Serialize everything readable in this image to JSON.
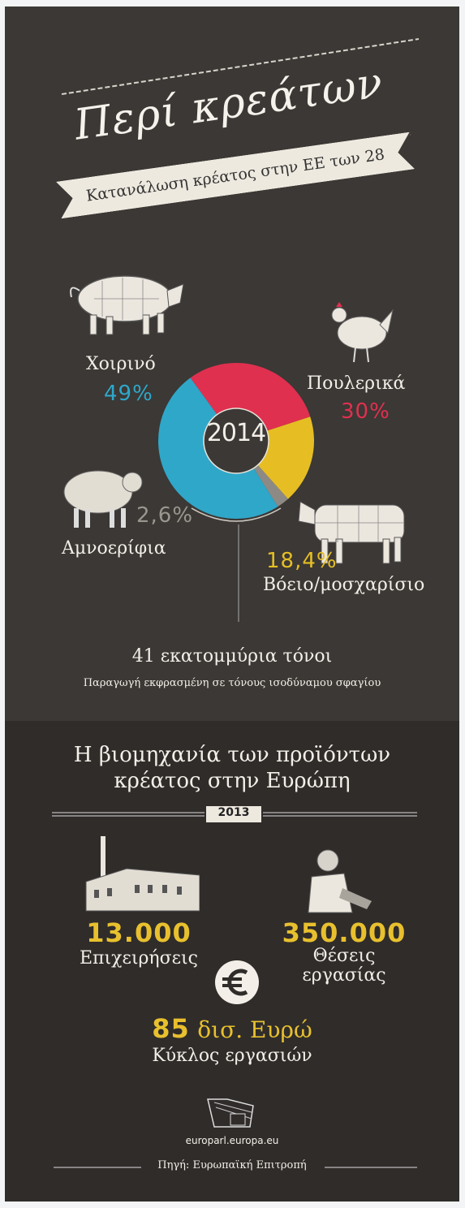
{
  "header": {
    "title": "Περί κρεάτων",
    "ribbon": "Κατανάλωση κρέατος στην ΕΕ των 28"
  },
  "chart_data": {
    "type": "pie",
    "center_label": "2014",
    "slices": [
      {
        "name": "Χοιρινό",
        "label": "49%",
        "value": 49,
        "color": "#2fa7c9"
      },
      {
        "name": "Πουλερικά",
        "label": "30%",
        "value": 30,
        "color": "#e0304f"
      },
      {
        "name": "Βόειο/μοσχαρίσιο",
        "label": "18,4%",
        "value": 18.4,
        "color": "#e6be24"
      },
      {
        "name": "Αμνοερίφια",
        "label": "2,6%",
        "value": 2.6,
        "color": "#8d8a86"
      }
    ]
  },
  "summary": {
    "total": "41 εκατομμύρια τόνοι",
    "note": "Παραγωγή εκφρασμένη σε τόνους ισοδύναμου σφαγίου"
  },
  "industry": {
    "title_line1": "Η βιομηχανία των προϊόντων",
    "title_line2": "κρέατος στην Ευρώπη",
    "year": "2013",
    "businesses_value": "13.000",
    "businesses_label": "Επιχειρήσεις",
    "jobs_value": "350.000",
    "jobs_label_line1": "Θέσεις",
    "jobs_label_line2": "εργασίας",
    "turnover_value": "85",
    "turnover_unit": "δισ. Ευρώ",
    "turnover_label": "Κύκλος εργασιών"
  },
  "footer": {
    "site": "europarl.europa.eu",
    "source": "Πηγή: Ευρωπαϊκή Επιτροπή"
  },
  "colors": {
    "board": "#3b3835",
    "accent_yellow": "#e8c02e"
  }
}
